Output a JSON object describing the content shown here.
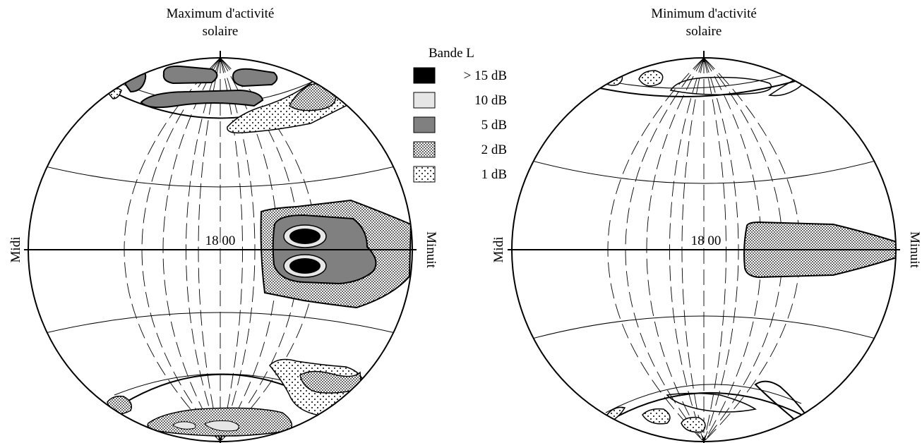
{
  "left_globe": {
    "title_line1": "Maximum d'activité",
    "title_line2": "solaire",
    "center_label": "18 00",
    "left_label": "Midi",
    "right_label": "Minuit"
  },
  "right_globe": {
    "title_line1": "Minimum d'activité",
    "title_line2": "solaire",
    "center_label": "18 00",
    "left_label": "Midi",
    "right_label": "Minuit"
  },
  "legend": {
    "title": "Bande L",
    "items": [
      {
        "label": "> 15 dB",
        "fill": "#000000"
      },
      {
        "label": "10 dB",
        "fill": "#e6e6e6"
      },
      {
        "label": "5 dB",
        "fill": "#808080"
      },
      {
        "label": "2 dB",
        "fill": "dense-dots"
      },
      {
        "label": "1 dB",
        "fill": "sparse-dots"
      }
    ]
  }
}
